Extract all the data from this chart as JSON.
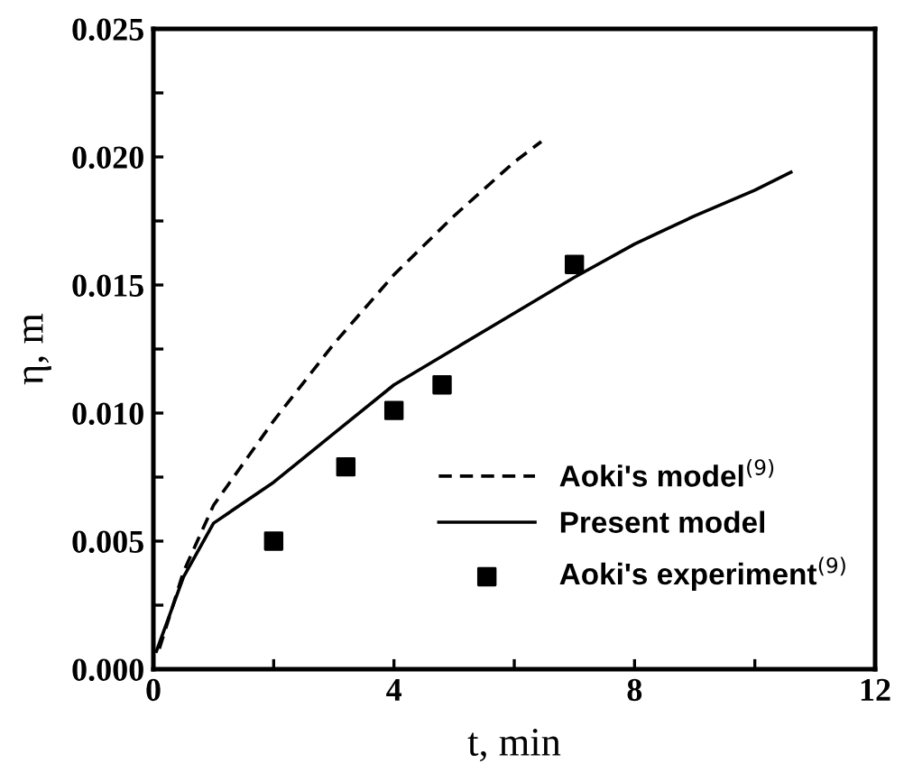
{
  "chart_data": {
    "type": "line",
    "xlabel": "t, min",
    "ylabel": "η, m",
    "xlim": [
      0,
      12
    ],
    "ylim": [
      0,
      0.025
    ],
    "xticks": [
      0,
      {
        "value": 2,
        "label": null
      },
      4,
      {
        "value": 6,
        "label": null
      },
      8,
      {
        "value": 10,
        "label": null
      },
      12
    ],
    "yticks": [
      "0.000",
      {
        "value": 0.0025,
        "label": null
      },
      {
        "value": 0.005,
        "label": "0.005"
      },
      {
        "value": 0.0075,
        "label": null
      },
      {
        "value": 0.01,
        "label": "0.010"
      },
      {
        "value": 0.0125,
        "label": null
      },
      {
        "value": 0.015,
        "label": "0.015"
      },
      {
        "value": 0.0175,
        "label": null
      },
      {
        "value": 0.02,
        "label": "0.020"
      },
      {
        "value": 0.0225,
        "label": null
      },
      {
        "value": 0.025,
        "label": "0.025"
      }
    ],
    "grid": false,
    "legend": "bottom right",
    "series": [
      {
        "name": "Aoki's model$^{(9)}$",
        "color": "#000000",
        "line_style": "dashed",
        "marker": "none",
        "x": [
          0.1,
          0.5,
          1,
          2,
          3,
          4,
          5,
          6,
          6.45
        ],
        "values": [
          0.0008,
          0.0038,
          0.0064,
          0.0097,
          0.0127,
          0.0154,
          0.0177,
          0.0198,
          0.0206
        ]
      },
      {
        "name": "Present model",
        "color": "#000000",
        "line_style": "solid",
        "marker": "none",
        "x": [
          0.05,
          0.5,
          1,
          2,
          3,
          4,
          5,
          6,
          7,
          8,
          9,
          10,
          10.6
        ],
        "values": [
          0.0007,
          0.0036,
          0.0057,
          0.0073,
          0.0092,
          0.0111,
          0.0125,
          0.0139,
          0.0153,
          0.0166,
          0.0177,
          0.0187,
          0.0194
        ]
      },
      {
        "name": "Aoki's experiment$^{(9)}$",
        "type": "scatter",
        "color": "#000000",
        "marker": "square",
        "x": [
          2,
          3.2,
          4,
          4.8,
          7
        ],
        "values": [
          0.005,
          0.0079,
          0.0101,
          0.0111,
          0.0158
        ]
      }
    ]
  }
}
